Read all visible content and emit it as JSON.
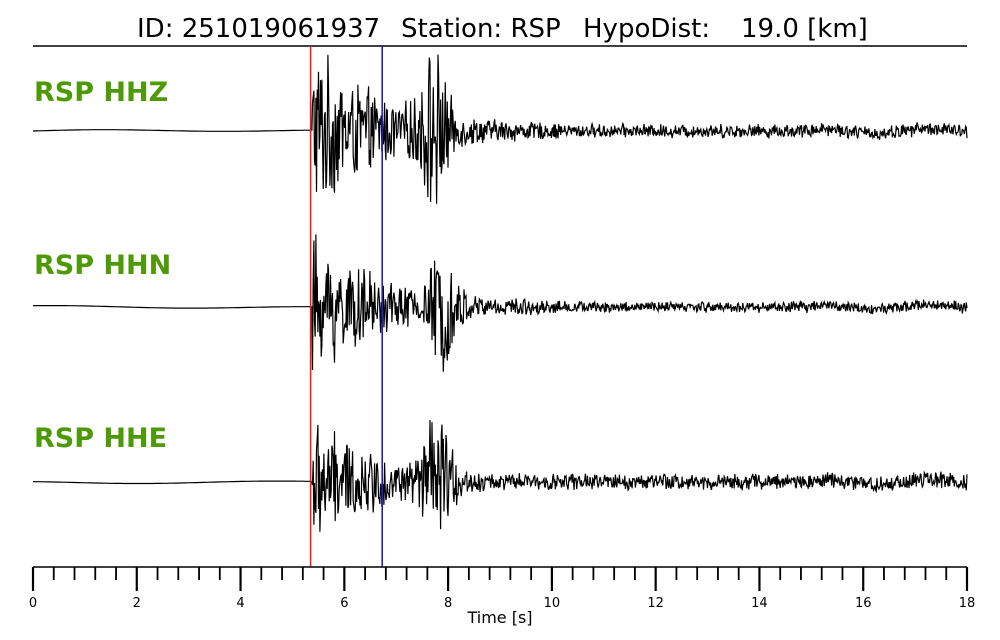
{
  "chart_data": {
    "type": "line",
    "title": {
      "id_label": "ID: 251019061937",
      "station_label": "Station: RSP",
      "dist_label": "HypoDist:",
      "dist_value": "19.0 [km]"
    },
    "xlabel": "Time [s]",
    "xlim": [
      0,
      18
    ],
    "major_ticks": [
      0,
      2,
      4,
      6,
      8,
      10,
      12,
      14,
      16,
      18
    ],
    "minor_tick_step": 0.4,
    "p_pick_s": 5.35,
    "s_pick_s": 6.73,
    "p_pick_color": "#e8261e",
    "s_pick_color": "#1f1fc8",
    "label_color": "#4e9a06",
    "trace_color": "#000000",
    "series": [
      {
        "name": "RSP HHZ",
        "onset_s": 5.38,
        "peak_amp": 1.0,
        "second_burst_s": 7.72,
        "second_burst_amp": 0.95,
        "tail_amp": 0.1
      },
      {
        "name": "RSP HHN",
        "onset_s": 5.38,
        "peak_amp": 0.85,
        "second_burst_s": 7.9,
        "second_burst_amp": 0.65,
        "tail_amp": 0.08
      },
      {
        "name": "RSP HHE",
        "onset_s": 5.38,
        "peak_amp": 0.75,
        "second_burst_s": 7.8,
        "second_burst_amp": 0.85,
        "tail_amp": 0.12
      }
    ]
  }
}
